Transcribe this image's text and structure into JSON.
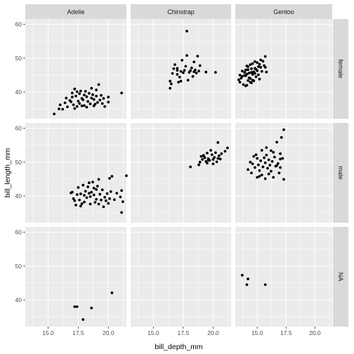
{
  "chart_data": {
    "type": "scatter",
    "xlabel": "bill_depth_mm",
    "ylabel": "bill_length_mm",
    "xlim": [
      13.1,
      21.5
    ],
    "ylim": [
      32.1,
      61.6
    ],
    "xticks": [
      15.0,
      17.5,
      20.0
    ],
    "xtick_labels": [
      "15.0",
      "17.5",
      "20.0"
    ],
    "yticks": [
      40,
      50,
      60
    ],
    "ytick_labels": [
      "40",
      "50",
      "60"
    ],
    "grid": true,
    "legend": "none",
    "col_facets": [
      "Adelie",
      "Chinstrap",
      "Gentoo"
    ],
    "row_facets": [
      "female",
      "male",
      "NA"
    ],
    "colors": {
      "panel_bg": "#ebebeb",
      "strip_bg": "#d9d9d9",
      "grid_major": "#ffffff",
      "point": "#000000"
    },
    "panels": [
      {
        "col": "Adelie",
        "row": "female",
        "points": [
          [
            15.5,
            33.5
          ],
          [
            15.9,
            35.0
          ],
          [
            16.0,
            36.2
          ],
          [
            16.2,
            34.9
          ],
          [
            16.4,
            36.8
          ],
          [
            16.6,
            35.6
          ],
          [
            16.8,
            37.5
          ],
          [
            16.9,
            37.1
          ],
          [
            17.0,
            38.5
          ],
          [
            17.0,
            39.7
          ],
          [
            17.1,
            36.2
          ],
          [
            17.2,
            35.1
          ],
          [
            17.2,
            40.9
          ],
          [
            17.3,
            38.8
          ],
          [
            17.4,
            35.7
          ],
          [
            17.5,
            37.3
          ],
          [
            17.6,
            39.5
          ],
          [
            17.6,
            36.6
          ],
          [
            17.7,
            40.3
          ],
          [
            17.8,
            38.1
          ],
          [
            17.8,
            35.9
          ],
          [
            17.9,
            37.7
          ],
          [
            18.0,
            39.1
          ],
          [
            18.0,
            36.0
          ],
          [
            18.1,
            40.2
          ],
          [
            18.2,
            38.6
          ],
          [
            18.2,
            35.5
          ],
          [
            18.3,
            37.2
          ],
          [
            18.4,
            39.6
          ],
          [
            18.5,
            36.5
          ],
          [
            18.6,
            38.2
          ],
          [
            18.7,
            39.2
          ],
          [
            18.8,
            35.9
          ],
          [
            18.8,
            37.8
          ],
          [
            18.9,
            36.4
          ],
          [
            19.0,
            38.8
          ],
          [
            19.0,
            40.6
          ],
          [
            19.1,
            36.9
          ],
          [
            19.2,
            42.2
          ],
          [
            19.3,
            37.6
          ],
          [
            19.4,
            39.0
          ],
          [
            19.5,
            36.6
          ],
          [
            19.6,
            38.1
          ],
          [
            19.7,
            35.7
          ],
          [
            20.0,
            37.0
          ],
          [
            20.0,
            38.5
          ],
          [
            21.1,
            39.7
          ],
          [
            16.5,
            38.2
          ],
          [
            17.4,
            40.1
          ],
          [
            18.6,
            41.1
          ]
        ]
      },
      {
        "col": "Chinstrap",
        "row": "female",
        "points": [
          [
            16.4,
            41.1
          ],
          [
            16.4,
            43.2
          ],
          [
            16.5,
            42.4
          ],
          [
            16.6,
            45.5
          ],
          [
            16.7,
            46.9
          ],
          [
            16.8,
            48.1
          ],
          [
            17.0,
            45.2
          ],
          [
            17.0,
            47.0
          ],
          [
            17.1,
            42.9
          ],
          [
            17.2,
            44.4
          ],
          [
            17.3,
            46.1
          ],
          [
            17.4,
            49.4
          ],
          [
            17.5,
            45.7
          ],
          [
            17.6,
            46.4
          ],
          [
            17.7,
            47.6
          ],
          [
            17.8,
            50.8
          ],
          [
            17.8,
            58.0
          ],
          [
            17.9,
            43.5
          ],
          [
            18.0,
            45.8
          ],
          [
            18.1,
            46.3
          ],
          [
            18.2,
            47.1
          ],
          [
            18.3,
            44.6
          ],
          [
            18.4,
            48.9
          ],
          [
            18.5,
            46.5
          ],
          [
            18.6,
            45.6
          ],
          [
            18.7,
            50.6
          ],
          [
            18.8,
            46.2
          ],
          [
            18.9,
            47.8
          ],
          [
            19.4,
            45.9
          ],
          [
            20.2,
            45.8
          ],
          [
            17.0,
            46.4
          ],
          [
            18.4,
            46.0
          ],
          [
            17.3,
            43.2
          ]
        ]
      },
      {
        "col": "Gentoo",
        "row": "female",
        "points": [
          [
            13.4,
            43.6
          ],
          [
            13.5,
            45.0
          ],
          [
            13.6,
            44.1
          ],
          [
            13.7,
            46.2
          ],
          [
            13.8,
            42.2
          ],
          [
            13.9,
            44.9
          ],
          [
            14.0,
            46.5
          ],
          [
            14.0,
            41.8
          ],
          [
            14.1,
            45.3
          ],
          [
            14.2,
            43.4
          ],
          [
            14.2,
            47.5
          ],
          [
            14.3,
            45.6
          ],
          [
            14.4,
            44.0
          ],
          [
            14.5,
            46.9
          ],
          [
            14.5,
            42.7
          ],
          [
            14.6,
            48.4
          ],
          [
            14.6,
            45.2
          ],
          [
            14.7,
            43.3
          ],
          [
            14.8,
            47.0
          ],
          [
            14.8,
            45.5
          ],
          [
            14.9,
            44.5
          ],
          [
            15.0,
            46.3
          ],
          [
            15.0,
            48.7
          ],
          [
            15.1,
            45.1
          ],
          [
            15.2,
            43.8
          ],
          [
            15.3,
            47.3
          ],
          [
            15.4,
            46.1
          ],
          [
            15.5,
            49.1
          ],
          [
            15.6,
            47.8
          ],
          [
            15.7,
            50.5
          ],
          [
            15.8,
            45.9
          ],
          [
            14.1,
            47.7
          ],
          [
            14.4,
            48.1
          ],
          [
            14.8,
            49.0
          ],
          [
            14.4,
            42.9
          ],
          [
            13.7,
            44.6
          ],
          [
            13.5,
            42.9
          ],
          [
            14.3,
            44.2
          ],
          [
            14.9,
            46.7
          ],
          [
            15.2,
            48.2
          ],
          [
            13.9,
            45.8
          ],
          [
            14.6,
            43.5
          ],
          [
            15.1,
            47.5
          ],
          [
            14.1,
            42.0
          ],
          [
            14.7,
            46.0
          ],
          [
            15.3,
            49.5
          ],
          [
            14.0,
            44.8
          ],
          [
            14.5,
            45.8
          ],
          [
            15.7,
            47.3
          ],
          [
            14.2,
            46.6
          ]
        ]
      },
      {
        "col": "Adelie",
        "row": "male",
        "points": [
          [
            16.9,
            40.9
          ],
          [
            17.0,
            41.1
          ],
          [
            17.2,
            38.6
          ],
          [
            17.3,
            37.3
          ],
          [
            17.4,
            40.4
          ],
          [
            17.5,
            42.5
          ],
          [
            17.6,
            38.8
          ],
          [
            17.7,
            40.6
          ],
          [
            17.8,
            37.7
          ],
          [
            17.9,
            43.2
          ],
          [
            18.0,
            40.2
          ],
          [
            18.0,
            38.2
          ],
          [
            18.1,
            41.4
          ],
          [
            18.2,
            39.5
          ],
          [
            18.3,
            42.7
          ],
          [
            18.4,
            40.8
          ],
          [
            18.5,
            37.6
          ],
          [
            18.5,
            39.8
          ],
          [
            18.6,
            41.1
          ],
          [
            18.7,
            44.1
          ],
          [
            18.8,
            40.3
          ],
          [
            18.9,
            38.1
          ],
          [
            19.0,
            41.9
          ],
          [
            19.0,
            39.0
          ],
          [
            19.1,
            42.9
          ],
          [
            19.2,
            37.6
          ],
          [
            19.3,
            40.5
          ],
          [
            19.4,
            38.8
          ],
          [
            19.5,
            41.8
          ],
          [
            19.6,
            36.8
          ],
          [
            19.7,
            39.6
          ],
          [
            19.8,
            38.6
          ],
          [
            19.9,
            40.7
          ],
          [
            20.0,
            37.8
          ],
          [
            20.1,
            39.2
          ],
          [
            20.2,
            41.3
          ],
          [
            20.3,
            45.8
          ],
          [
            20.5,
            38.9
          ],
          [
            20.7,
            40.8
          ],
          [
            21.0,
            39.7
          ],
          [
            21.1,
            41.6
          ],
          [
            21.2,
            38.3
          ],
          [
            21.1,
            35.1
          ],
          [
            21.5,
            46.0
          ],
          [
            20.1,
            45.2
          ],
          [
            19.2,
            44.9
          ],
          [
            18.8,
            42.3
          ],
          [
            17.1,
            39.2
          ],
          [
            17.7,
            37.0
          ],
          [
            18.4,
            43.9
          ]
        ]
      },
      {
        "col": "Chinstrap",
        "row": "male",
        "points": [
          [
            18.1,
            48.6
          ],
          [
            18.8,
            49.2
          ],
          [
            18.9,
            50.0
          ],
          [
            19.0,
            51.7
          ],
          [
            19.1,
            50.8
          ],
          [
            19.2,
            52.0
          ],
          [
            19.3,
            51.3
          ],
          [
            19.4,
            50.2
          ],
          [
            19.5,
            52.7
          ],
          [
            19.5,
            49.7
          ],
          [
            19.6,
            51.0
          ],
          [
            19.7,
            50.5
          ],
          [
            19.8,
            53.5
          ],
          [
            19.9,
            52.2
          ],
          [
            20.0,
            49.5
          ],
          [
            20.0,
            50.8
          ],
          [
            20.1,
            51.4
          ],
          [
            20.2,
            52.8
          ],
          [
            20.3,
            50.1
          ],
          [
            20.4,
            55.8
          ],
          [
            20.5,
            51.9
          ],
          [
            20.6,
            50.9
          ],
          [
            20.7,
            52.5
          ],
          [
            21.0,
            53.2
          ],
          [
            21.2,
            54.2
          ],
          [
            19.2,
            51.8
          ],
          [
            19.6,
            50.6
          ],
          [
            20.4,
            51.1
          ]
        ]
      },
      {
        "col": "Gentoo",
        "row": "male",
        "points": [
          [
            14.2,
            47.8
          ],
          [
            14.4,
            50.0
          ],
          [
            14.5,
            46.8
          ],
          [
            14.6,
            49.5
          ],
          [
            14.8,
            48.4
          ],
          [
            15.0,
            51.1
          ],
          [
            15.0,
            45.5
          ],
          [
            15.1,
            49.2
          ],
          [
            15.2,
            47.5
          ],
          [
            15.3,
            50.4
          ],
          [
            15.4,
            46.2
          ],
          [
            15.5,
            48.6
          ],
          [
            15.6,
            51.3
          ],
          [
            15.7,
            49.8
          ],
          [
            15.7,
            45.1
          ],
          [
            15.8,
            52.1
          ],
          [
            15.9,
            48.2
          ],
          [
            16.0,
            50.7
          ],
          [
            16.0,
            46.5
          ],
          [
            16.1,
            49.1
          ],
          [
            16.2,
            53.4
          ],
          [
            16.2,
            47.3
          ],
          [
            16.3,
            50.2
          ],
          [
            16.4,
            45.5
          ],
          [
            16.5,
            51.5
          ],
          [
            16.6,
            48.8
          ],
          [
            16.7,
            55.9
          ],
          [
            16.8,
            49.6
          ],
          [
            16.9,
            46.8
          ],
          [
            17.0,
            52.5
          ],
          [
            17.0,
            50.9
          ],
          [
            17.1,
            57.3
          ],
          [
            17.2,
            51.1
          ],
          [
            17.3,
            59.6
          ],
          [
            17.0,
            48.4
          ],
          [
            14.9,
            52.2
          ],
          [
            15.4,
            53.5
          ],
          [
            15.8,
            54.3
          ],
          [
            16.4,
            52.9
          ],
          [
            15.2,
            45.8
          ],
          [
            17.3,
            44.9
          ],
          [
            14.7,
            51.7
          ],
          [
            16.7,
            49.0
          ]
        ]
      },
      {
        "col": "Adelie",
        "row": "NA",
        "points": [
          [
            17.2,
            38.0
          ],
          [
            17.4,
            38.0
          ],
          [
            17.9,
            34.2
          ],
          [
            18.6,
            37.6
          ],
          [
            20.3,
            42.1
          ]
        ]
      },
      {
        "col": "Chinstrap",
        "row": "NA",
        "points": []
      },
      {
        "col": "Gentoo",
        "row": "NA",
        "points": [
          [
            13.7,
            47.3
          ],
          [
            14.2,
            46.2
          ],
          [
            14.1,
            44.5
          ],
          [
            15.7,
            44.5
          ]
        ]
      }
    ]
  }
}
